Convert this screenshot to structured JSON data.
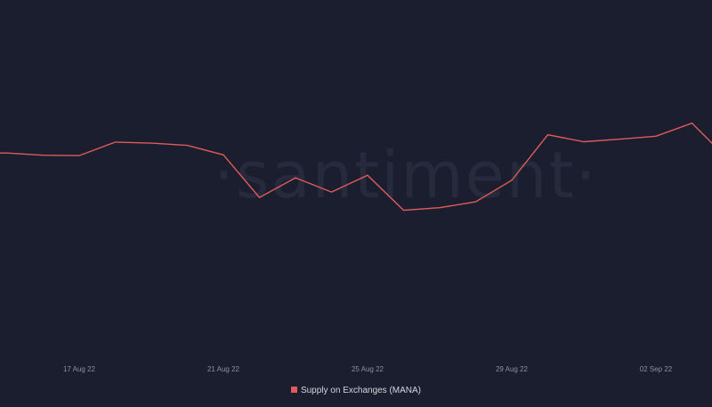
{
  "watermark": "·santiment·",
  "colors": {
    "background": "#1b1e2e",
    "series": "#e05a5a",
    "axis_text": "#8a8fa3"
  },
  "chart_data": {
    "type": "line",
    "x": [
      "15 Aug 22",
      "16 Aug 22",
      "17 Aug 22",
      "18 Aug 22",
      "19 Aug 22",
      "20 Aug 22",
      "21 Aug 22",
      "22 Aug 22",
      "23 Aug 22",
      "24 Aug 22",
      "25 Aug 22",
      "26 Aug 22",
      "27 Aug 22",
      "28 Aug 22",
      "29 Aug 22",
      "30 Aug 22",
      "31 Aug 22",
      "01 Sep 22",
      "02 Sep 22",
      "03 Sep 22",
      "04 Sep 22"
    ],
    "series": [
      {
        "name": "Supply on Exchanges (MANA)",
        "color": "#e05a5a",
        "values": [
          58.0,
          57.4,
          57.3,
          61.0,
          60.7,
          60.1,
          57.5,
          45.8,
          51.2,
          47.3,
          51.9,
          42.3,
          43.0,
          44.6,
          50.5,
          63.0,
          61.1,
          61.8,
          62.6,
          66.2,
          56.3
        ]
      }
    ],
    "xticks": [
      "17 Aug 22",
      "21 Aug 22",
      "25 Aug 22",
      "29 Aug 22",
      "02 Sep 22"
    ],
    "ylim": [
      0,
      100
    ],
    "grid": false,
    "legend_position": "bottom-center"
  }
}
